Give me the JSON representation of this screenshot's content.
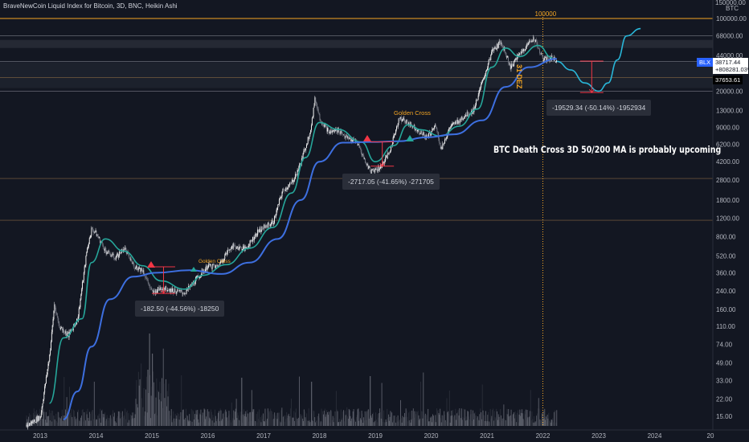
{
  "header": {
    "title": "BraveNewCoin Liquid Index for Bitcoin, 3D, BNC, Heikin Ashi"
  },
  "axis": {
    "currency": "BTC",
    "top_partial": "150000.00",
    "ticks": [
      "100000.00",
      "68000.00",
      "44000.00",
      "20000.00",
      "13000.00",
      "9000.00",
      "6200.00",
      "4200.00",
      "2800.00",
      "1800.00",
      "1200.00",
      "800.00",
      "520.00",
      "360.00",
      "240.00",
      "160.00",
      "110.00",
      "74.00",
      "49.00",
      "33.00",
      "22.00",
      "15.00"
    ],
    "years": [
      "2013",
      "2014",
      "2015",
      "2016",
      "2017",
      "2018",
      "2019",
      "2020",
      "2021",
      "2022",
      "2023",
      "2024",
      "20"
    ]
  },
  "markers": {
    "vline_label": "100000",
    "vline_rotated": "31 DEZ",
    "golden_cross_1": "Golden Cross",
    "golden_cross_2": "Golden Cross"
  },
  "measurements": {
    "m1": "-182.50 (-44.56%) -18250",
    "m2": "-2717.05 (-41.65%) -271705",
    "m3": "-19529.34 (-50.14%) -1952934"
  },
  "annotation": "BTC Death Cross 3D 50/200 MA is probably upcoming",
  "price_tags": {
    "symbol": "BLX",
    "last": "38717.44",
    "change": "+808281.03%",
    "other": "37653.61"
  },
  "colors": {
    "background": "#131722",
    "ma50": "#26a69a",
    "ma200": "#3d6fe0",
    "projection": "#29b6d8",
    "level_line": "#f5a623",
    "measure_red": "#f23645",
    "text_orange": "#f5a623",
    "candle_up": "#ffffff",
    "candle_down": "#787b86"
  },
  "chart_data": {
    "type": "line",
    "title": "BraveNewCoin Liquid Index for Bitcoin, 3D, BNC, Heikin Ashi",
    "y_scale": "log",
    "ylim": [
      12,
      150000
    ],
    "x_range": [
      "2012-09",
      "2024-12"
    ],
    "series": [
      {
        "name": "",
        "role": "price",
        "points": [
          [
            "2012-10",
            12
          ],
          [
            "2013-01",
            15
          ],
          [
            "2013-03",
            60
          ],
          [
            "2013-04",
            180
          ],
          [
            "2013-05",
            110
          ],
          [
            "2013-07",
            90
          ],
          [
            "2013-09",
            130
          ],
          [
            "2013-11",
            600
          ],
          [
            "2013-12",
            950
          ],
          [
            "2014-01",
            850
          ],
          [
            "2014-03",
            580
          ],
          [
            "2014-05",
            500
          ],
          [
            "2014-07",
            620
          ],
          [
            "2014-09",
            420
          ],
          [
            "2014-11",
            380
          ],
          [
            "2015-01",
            230
          ],
          [
            "2015-03",
            260
          ],
          [
            "2015-06",
            240
          ],
          [
            "2015-08",
            230
          ],
          [
            "2015-11",
            330
          ],
          [
            "2016-01",
            420
          ],
          [
            "2016-03",
            410
          ],
          [
            "2016-06",
            650
          ],
          [
            "2016-09",
            610
          ],
          [
            "2016-12",
            930
          ],
          [
            "2017-03",
            1100
          ],
          [
            "2017-05",
            2200
          ],
          [
            "2017-07",
            2600
          ],
          [
            "2017-09",
            4200
          ],
          [
            "2017-11",
            8500
          ],
          [
            "2017-12",
            17000
          ],
          [
            "2018-01",
            11000
          ],
          [
            "2018-03",
            8000
          ],
          [
            "2018-05",
            8500
          ],
          [
            "2018-07",
            7000
          ],
          [
            "2018-09",
            6500
          ],
          [
            "2018-11",
            4000
          ],
          [
            "2018-12",
            3400
          ],
          [
            "2019-02",
            3700
          ],
          [
            "2019-04",
            5200
          ],
          [
            "2019-06",
            11000
          ],
          [
            "2019-08",
            10000
          ],
          [
            "2019-10",
            8500
          ],
          [
            "2019-12",
            7200
          ],
          [
            "2020-02",
            9500
          ],
          [
            "2020-03",
            5500
          ],
          [
            "2020-05",
            9000
          ],
          [
            "2020-08",
            11500
          ],
          [
            "2020-10",
            13000
          ],
          [
            "2020-12",
            25000
          ],
          [
            "2021-02",
            48000
          ],
          [
            "2021-04",
            60000
          ],
          [
            "2021-06",
            34000
          ],
          [
            "2021-08",
            46000
          ],
          [
            "2021-11",
            66000
          ],
          [
            "2022-01",
            40000
          ],
          [
            "2022-03",
            42000
          ],
          [
            "2022-04",
            38717
          ]
        ]
      },
      {
        "name": "",
        "role": "ma50",
        "points": [
          [
            "2013-03",
            20
          ],
          [
            "2013-06",
            85
          ],
          [
            "2013-10",
            130
          ],
          [
            "2013-12",
            450
          ],
          [
            "2014-03",
            760
          ],
          [
            "2014-07",
            580
          ],
          [
            "2014-11",
            420
          ],
          [
            "2015-03",
            300
          ],
          [
            "2015-08",
            250
          ],
          [
            "2015-12",
            340
          ],
          [
            "2016-05",
            430
          ],
          [
            "2016-10",
            620
          ],
          [
            "2017-03",
            980
          ],
          [
            "2017-07",
            2100
          ],
          [
            "2017-10",
            4600
          ],
          [
            "2018-01",
            10000
          ],
          [
            "2018-05",
            8600
          ],
          [
            "2018-10",
            6500
          ],
          [
            "2019-01",
            4200
          ],
          [
            "2019-05",
            6000
          ],
          [
            "2019-08",
            9500
          ],
          [
            "2019-11",
            8500
          ],
          [
            "2020-03",
            7400
          ],
          [
            "2020-07",
            9200
          ],
          [
            "2020-11",
            13500
          ],
          [
            "2021-02",
            34000
          ],
          [
            "2021-05",
            52000
          ],
          [
            "2021-08",
            43000
          ],
          [
            "2021-12",
            55000
          ],
          [
            "2022-03",
            42000
          ]
        ]
      },
      {
        "name": "",
        "role": "ma200",
        "points": [
          [
            "2013-06",
            14
          ],
          [
            "2013-09",
            26
          ],
          [
            "2013-12",
            70
          ],
          [
            "2014-04",
            200
          ],
          [
            "2014-09",
            330
          ],
          [
            "2015-02",
            360
          ],
          [
            "2015-09",
            380
          ],
          [
            "2016-04",
            350
          ],
          [
            "2016-10",
            450
          ],
          [
            "2017-04",
            760
          ],
          [
            "2017-09",
            1800
          ],
          [
            "2018-01",
            4200
          ],
          [
            "2018-06",
            6400
          ],
          [
            "2018-12",
            6500
          ],
          [
            "2019-06",
            6600
          ],
          [
            "2019-12",
            7200
          ],
          [
            "2020-06",
            7700
          ],
          [
            "2020-12",
            10500
          ],
          [
            "2021-05",
            22000
          ],
          [
            "2021-10",
            34000
          ],
          [
            "2022-04",
            41000
          ]
        ]
      },
      {
        "name": "",
        "role": "projection",
        "points": [
          [
            "2022-04",
            38717
          ],
          [
            "2022-07",
            32000
          ],
          [
            "2022-10",
            24000
          ],
          [
            "2023-01",
            20000
          ],
          [
            "2023-03",
            24000
          ],
          [
            "2023-05",
            40000
          ],
          [
            "2023-07",
            68000
          ],
          [
            "2023-10",
            80000
          ]
        ]
      }
    ],
    "measurements": [
      {
        "from": 410,
        "to": 227.5,
        "change": -182.5,
        "pct": -44.56
      },
      {
        "from": 6523,
        "to": 3806,
        "change": -2717.05,
        "pct": -41.65
      },
      {
        "from": 38950,
        "to": 19420,
        "change": -19529.34,
        "pct": -50.14
      }
    ],
    "levels": [
      100000,
      27000,
      2900,
      1150
    ],
    "vertical_marker": "2022-01"
  }
}
